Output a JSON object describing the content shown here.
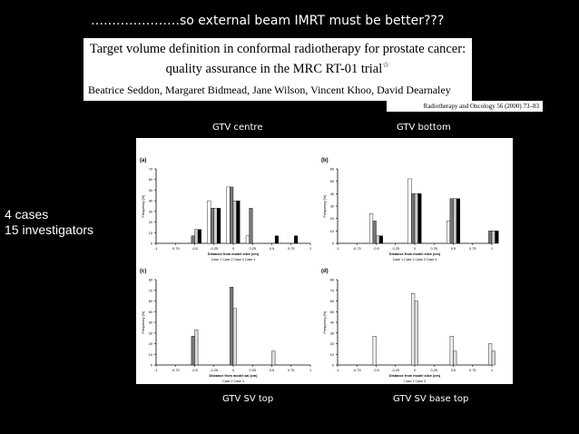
{
  "headline": "…………………so external beam IMRT must be better???",
  "paper": {
    "title_line1": "Target volume definition in conformal radiotherapy for prostate cancer:",
    "title_line2": "quality assurance in the MRC RT-01 trial",
    "title_star": "☆",
    "authors": "Beatrice Seddon",
    "authors_rest": ", Margaret Bidmead, Jane Wilson, Vincent Khoo, David Dearnaley",
    "citation": "Radiotherapy and Oncology 56 (2000) 73–83"
  },
  "side_text": {
    "line1": "4 cases",
    "line2": "15 investigators"
  },
  "labels": {
    "top_left": "GTV centre",
    "top_right": "GTV bottom",
    "bottom_left": "GTV SV top",
    "bottom_right": "GTV SV base top"
  },
  "chart_data": [
    {
      "type": "bar",
      "panel": "(a)",
      "ylabel": "Frequency (%)",
      "xlabel": "Distance from model slice (cm)",
      "legend": "Case 1  Case 2  Case 3  Case 4",
      "ylim": [
        0,
        70
      ],
      "yticks": [
        0,
        10,
        20,
        30,
        40,
        50,
        60,
        70
      ],
      "xlim": [
        -1,
        1
      ],
      "xticks": [
        "-1",
        "-0.75",
        "-0.5",
        "-0.25",
        "0",
        "0.25",
        "0.5",
        "0.75",
        "1"
      ],
      "x": [
        -0.5,
        -0.25,
        0,
        0.25,
        0.5,
        0.75
      ],
      "series": [
        {
          "color": "#ffffff",
          "values": [
            0,
            40,
            53,
            7,
            0,
            0
          ]
        },
        {
          "color": "#777777",
          "values": [
            7,
            33,
            53,
            33,
            0,
            0
          ]
        },
        {
          "color": "#cccccc",
          "values": [
            13,
            33,
            40,
            0,
            0,
            0
          ]
        },
        {
          "color": "#000000",
          "values": [
            13,
            33,
            40,
            0,
            7,
            7
          ]
        }
      ]
    },
    {
      "type": "bar",
      "panel": "(b)",
      "ylabel": "Frequency (%)",
      "xlabel": "Distance from model slice (cm)",
      "legend": "Case 1  Case 2  Case 3  Case 4",
      "ylim": [
        0,
        60
      ],
      "yticks": [
        0,
        10,
        20,
        30,
        40,
        50,
        60
      ],
      "xlim": [
        -1,
        1
      ],
      "xticks": [
        "-1",
        "-0.75",
        "-0.5",
        "-0.25",
        "0",
        "0.25",
        "0.5",
        "0.75",
        "1"
      ],
      "x": [
        -0.5,
        0,
        0.5,
        1
      ],
      "series": [
        {
          "color": "#ffffff",
          "values": [
            24,
            52,
            18,
            0
          ]
        },
        {
          "color": "#777777",
          "values": [
            18,
            40,
            36,
            10
          ]
        },
        {
          "color": "#cccccc",
          "values": [
            6,
            40,
            36,
            10
          ]
        },
        {
          "color": "#000000",
          "values": [
            6,
            40,
            36,
            10
          ]
        }
      ]
    },
    {
      "type": "bar",
      "panel": "(c)",
      "ylabel": "Frequency (%)",
      "xlabel": "Distance from model sai (cm)",
      "legend": "Case 2  Case 3",
      "ylim": [
        0,
        80
      ],
      "yticks": [
        0,
        10,
        20,
        30,
        40,
        50,
        60,
        70,
        80
      ],
      "xlim": [
        -1,
        1
      ],
      "xticks": [
        "-1",
        "-0.75",
        "-0.5",
        "-0.25",
        "0",
        "0.25",
        "0.5",
        "0.75",
        "1"
      ],
      "x": [
        -0.5,
        0,
        0.5
      ],
      "series": [
        {
          "color": "#777777",
          "values": [
            27,
            73,
            0
          ]
        },
        {
          "color": "#dddddd",
          "values": [
            33,
            53,
            13
          ]
        }
      ]
    },
    {
      "type": "bar",
      "panel": "(d)",
      "ylabel": "Frequency (%)",
      "xlabel": "Distance from model slice (cm)",
      "legend": "Case 1  Case 3",
      "ylim": [
        0,
        80
      ],
      "yticks": [
        0,
        10,
        20,
        30,
        40,
        50,
        60,
        70,
        80
      ],
      "xlim": [
        -1,
        1
      ],
      "xticks": [
        "-1",
        "-0.75",
        "-0.5",
        "-0.25",
        "0",
        "0.25",
        "0.5",
        "0.75",
        "1"
      ],
      "x": [
        -0.5,
        0,
        0.5,
        1
      ],
      "series": [
        {
          "color": "#eeeeee",
          "values": [
            27,
            67,
            27,
            20
          ]
        },
        {
          "color": "#dddddd",
          "values": [
            0,
            60,
            13,
            13
          ]
        }
      ]
    }
  ]
}
